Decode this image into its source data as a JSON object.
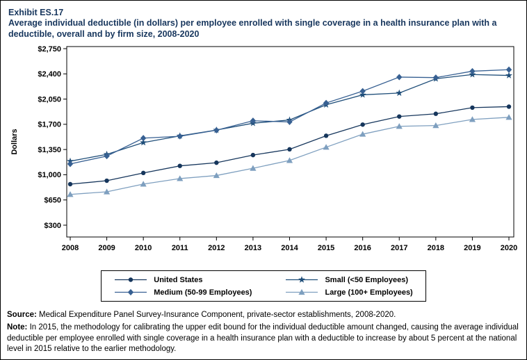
{
  "header": {
    "exhibit_label": "Exhibit ES.17",
    "title": "Average individual deductible (in dollars) per employee enrolled with single coverage in a health insurance plan with a deductible, overall and by firm size, 2008-2020"
  },
  "chart_data": {
    "type": "line",
    "title": "Average individual deductible (in dollars) per employee enrolled with single coverage in a health insurance plan with a deductible, overall and by firm size, 2008-2020",
    "xlabel": "",
    "ylabel": "Dollars",
    "x": [
      2008,
      2009,
      2010,
      2011,
      2012,
      2013,
      2014,
      2015,
      2016,
      2017,
      2018,
      2019,
      2020
    ],
    "y_ticks": [
      300,
      650,
      1000,
      1350,
      1700,
      2050,
      2400,
      2750
    ],
    "ylim": [
      300,
      2750
    ],
    "grid": false,
    "legend_position": "bottom",
    "series": [
      {
        "name": "United States",
        "marker": "circle",
        "color": "#16365C",
        "values": [
          869,
          917,
          1025,
          1123,
          1167,
          1273,
          1353,
          1541,
          1696,
          1808,
          1846,
          1931,
          1945
        ]
      },
      {
        "name": "Small (<50 Employees)",
        "marker": "star",
        "color": "#1F4E79",
        "values": [
          1188,
          1283,
          1447,
          1539,
          1620,
          1715,
          1760,
          1971,
          2109,
          2134,
          2332,
          2391,
          2378
        ]
      },
      {
        "name": "Medium (50-99 Employees)",
        "marker": "diamond",
        "color": "#376092",
        "values": [
          1150,
          1259,
          1508,
          1534,
          1618,
          1749,
          1733,
          1996,
          2160,
          2355,
          2348,
          2437,
          2458
        ]
      },
      {
        "name": "Large (100+ Employees)",
        "marker": "triangle",
        "color": "#7E9FBF",
        "values": [
          727,
          763,
          870,
          947,
          989,
          1090,
          1198,
          1382,
          1563,
          1672,
          1683,
          1767,
          1797
        ]
      }
    ]
  },
  "footer": {
    "source_label": "Source:",
    "source_text": "Medical Expenditure Panel Survey-Insurance Component, private-sector establishments, 2008-2020.",
    "note_label": "Note:",
    "note_text": "In 2015, the methodology for calibrating the upper edit bound for the individual deductible amount changed, causing the average individual deductible per employee enrolled with single coverage in a health insurance plan with a deductible to increase by about 5 percent at the national level in 2015 relative to the earlier methodology."
  }
}
